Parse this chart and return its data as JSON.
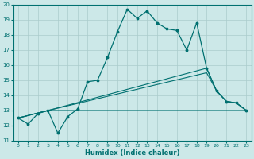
{
  "xlabel": "Humidex (Indice chaleur)",
  "ylabel": "",
  "xlim": [
    -0.5,
    23.5
  ],
  "ylim": [
    11,
    20
  ],
  "yticks": [
    11,
    12,
    13,
    14,
    15,
    16,
    17,
    18,
    19,
    20
  ],
  "xticks": [
    0,
    1,
    2,
    3,
    4,
    5,
    6,
    7,
    8,
    9,
    10,
    11,
    12,
    13,
    14,
    15,
    16,
    17,
    18,
    19,
    20,
    21,
    22,
    23
  ],
  "bg_color": "#cce8e8",
  "line_color": "#007070",
  "grid_color": "#aacccc",
  "main_line": {
    "x": [
      0,
      1,
      2,
      3,
      4,
      5,
      6,
      7,
      8,
      9,
      10,
      11,
      12,
      13,
      14,
      15,
      16,
      17,
      18,
      19,
      20,
      21,
      22,
      23
    ],
    "y": [
      12.5,
      12.1,
      12.8,
      13.0,
      11.5,
      12.6,
      13.1,
      14.9,
      15.0,
      16.5,
      18.2,
      19.7,
      19.1,
      19.6,
      18.8,
      18.4,
      18.3,
      17.0,
      18.8,
      15.8,
      14.3,
      13.6,
      13.5,
      13.0
    ]
  },
  "fan_lines": [
    {
      "x": [
        0,
        3,
        23
      ],
      "y": [
        12.5,
        13.0,
        13.0
      ]
    },
    {
      "x": [
        0,
        3,
        19,
        20,
        21,
        22,
        23
      ],
      "y": [
        12.5,
        13.0,
        15.5,
        14.3,
        13.6,
        13.5,
        13.0
      ]
    },
    {
      "x": [
        0,
        3,
        19,
        20,
        21,
        22,
        23
      ],
      "y": [
        12.5,
        13.0,
        15.8,
        14.3,
        13.6,
        13.5,
        13.0
      ]
    }
  ]
}
